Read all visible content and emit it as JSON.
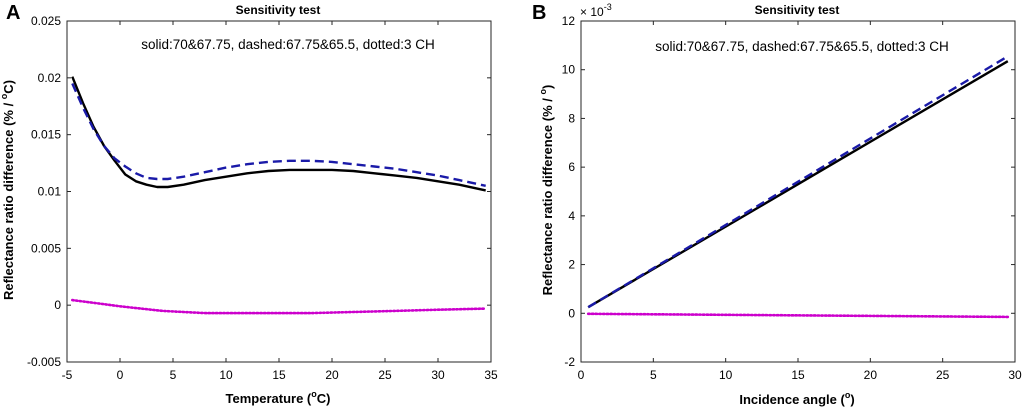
{
  "chart_data": [
    {
      "panel": "A",
      "type": "line",
      "title": "Sensitivity test",
      "annotation": "solid:70&67.75, dashed:67.75&65.5, dotted:3 CH",
      "xlabel": {
        "pre": "Temperature (",
        "sup": "o",
        "post": "C)"
      },
      "ylabel": {
        "pre": "Reflectance ratio difference (% / ",
        "sup": "o",
        "post": "C)"
      },
      "xlim": [
        -5,
        35
      ],
      "ylim": [
        -0.005,
        0.025
      ],
      "xticks": [
        -5,
        0,
        5,
        10,
        15,
        20,
        25,
        30,
        35
      ],
      "xtick_labels": [
        "-5",
        "0",
        "5",
        "10",
        "15",
        "20",
        "25",
        "30",
        "35"
      ],
      "yticks": [
        -0.005,
        0,
        0.005,
        0.01,
        0.015,
        0.02,
        0.025
      ],
      "ytick_labels": [
        "-0.005",
        "0",
        "0.005",
        "0.01",
        "0.015",
        "0.02",
        "0.025"
      ],
      "series": [
        {
          "name": "solid",
          "style": "solid",
          "color": "#000000",
          "x": [
            -4.5,
            -3.5,
            -2.5,
            -1.5,
            -0.5,
            0.5,
            1.5,
            2.5,
            3.5,
            4.5,
            6,
            8,
            10,
            12,
            14,
            16,
            18,
            20,
            22,
            24,
            26,
            28,
            30,
            32,
            34.5
          ],
          "y": [
            0.0201,
            0.0178,
            0.0157,
            0.014,
            0.0127,
            0.0115,
            0.0109,
            0.0106,
            0.0104,
            0.0104,
            0.0106,
            0.011,
            0.0113,
            0.0116,
            0.0118,
            0.0119,
            0.0119,
            0.0119,
            0.0118,
            0.0116,
            0.0114,
            0.0112,
            0.0109,
            0.0106,
            0.0101
          ]
        },
        {
          "name": "dashed",
          "style": "dashed",
          "color": "#1a1aa8",
          "x": [
            -4.5,
            -3.5,
            -2.5,
            -1.5,
            -0.5,
            0.5,
            1.5,
            2.5,
            3.5,
            4.5,
            6,
            8,
            10,
            12,
            14,
            16,
            18,
            20,
            22,
            24,
            26,
            28,
            30,
            32,
            34.5
          ],
          "y": [
            0.0195,
            0.0174,
            0.0155,
            0.014,
            0.0129,
            0.0122,
            0.0116,
            0.0112,
            0.0111,
            0.0111,
            0.0113,
            0.0117,
            0.0121,
            0.0124,
            0.0126,
            0.0127,
            0.0127,
            0.0126,
            0.0124,
            0.0122,
            0.012,
            0.0117,
            0.0114,
            0.011,
            0.0105
          ]
        },
        {
          "name": "dotted",
          "style": "dotted",
          "color": "#cc00cc",
          "x": [
            -4.5,
            -2,
            0,
            2,
            4,
            6,
            8,
            10,
            14,
            18,
            22,
            26,
            30,
            34.5
          ],
          "y": [
            0.00045,
            0.00015,
            -0.0001,
            -0.0003,
            -0.0005,
            -0.0006,
            -0.0007,
            -0.0007,
            -0.0007,
            -0.0007,
            -0.0006,
            -0.0005,
            -0.0004,
            -0.0003
          ]
        }
      ]
    },
    {
      "panel": "B",
      "type": "line",
      "title": "Sensitivity test",
      "annotation": "solid:70&67.75, dashed:67.75&65.5, dotted:3 CH",
      "xlabel": {
        "pre": "Incidence angle (",
        "sup": "o",
        "post": ")"
      },
      "ylabel": {
        "pre": "Reflectance ratio difference (% / ",
        "sup": "o",
        "post": ")"
      },
      "exponent": {
        "base": "× 10",
        "power": "-3"
      },
      "xlim": [
        0,
        30
      ],
      "ylim": [
        -2,
        12
      ],
      "xticks": [
        0,
        5,
        10,
        15,
        20,
        25,
        30
      ],
      "xtick_labels": [
        "0",
        "5",
        "10",
        "15",
        "20",
        "25",
        "30"
      ],
      "yticks": [
        -2,
        0,
        2,
        4,
        6,
        8,
        10,
        12
      ],
      "ytick_labels": [
        "-2",
        "0",
        "2",
        "4",
        "6",
        "8",
        "10",
        "12"
      ],
      "series": [
        {
          "name": "solid",
          "style": "solid",
          "color": "#000000",
          "x": [
            0.5,
            29.5
          ],
          "y": [
            0.25,
            10.35
          ]
        },
        {
          "name": "dashed",
          "style": "dashed",
          "color": "#1a1aa8",
          "x": [
            0.5,
            29.5
          ],
          "y": [
            0.25,
            10.55
          ]
        },
        {
          "name": "dotted",
          "style": "dotted",
          "color": "#cc00cc",
          "x": [
            0.5,
            29.5
          ],
          "y": [
            -0.02,
            -0.15
          ]
        }
      ]
    }
  ]
}
